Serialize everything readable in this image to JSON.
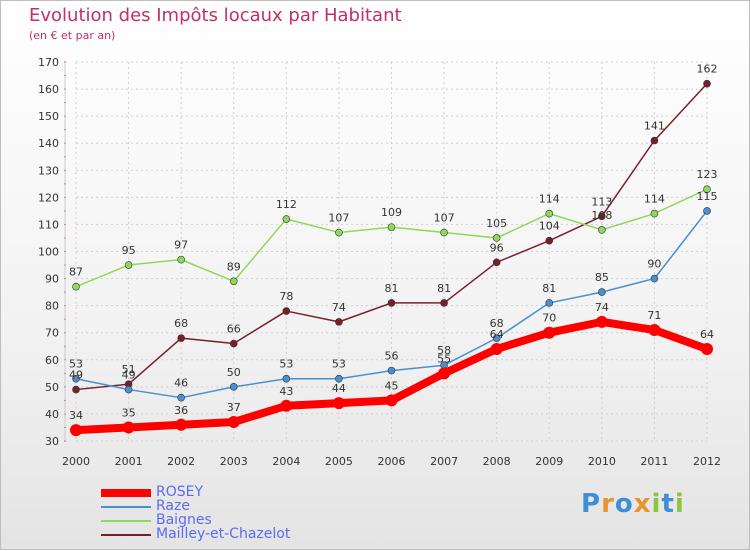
{
  "header": {
    "title": "Evolution des Impôts locaux par Habitant",
    "subtitle": "(en € et par an)"
  },
  "logo": {
    "text": "Proxiti",
    "letters": [
      "P",
      "r",
      "o",
      "x",
      "i",
      "t",
      "i"
    ],
    "colors": [
      "#3f8fd6",
      "#e8942e",
      "#3f8fd6",
      "#e8942e",
      "#8cc63f",
      "#3f8fd6",
      "#8cc63f"
    ]
  },
  "chart_data": {
    "type": "line",
    "title": "Evolution des Impôts locaux par Habitant",
    "subtitle": "(en € et par an)",
    "xlabel": "",
    "ylabel": "",
    "categories": [
      "2000",
      "2001",
      "2002",
      "2003",
      "2004",
      "2005",
      "2006",
      "2007",
      "2008",
      "2009",
      "2010",
      "2011",
      "2012"
    ],
    "ylim": [
      30,
      170
    ],
    "yticks": [
      30,
      40,
      50,
      60,
      70,
      80,
      90,
      100,
      110,
      120,
      130,
      140,
      150,
      160,
      170
    ],
    "grid": true,
    "legend_position": "bottom-left",
    "series": [
      {
        "name": "ROSEY",
        "color": "#ff0000",
        "values": [
          34,
          35,
          36,
          37,
          43,
          44,
          45,
          55,
          64,
          70,
          74,
          71,
          64
        ],
        "labels": [
          "34",
          "35",
          "36",
          "37",
          "43",
          "44",
          "45",
          "55",
          "64",
          "70",
          "74",
          "71",
          "64"
        ]
      },
      {
        "name": "Raze",
        "color": "#4a8fd0",
        "values": [
          53,
          49,
          46,
          50,
          53,
          53,
          56,
          58,
          68,
          81,
          85,
          90,
          115
        ],
        "labels": [
          "53",
          "49",
          "46",
          "50",
          "53",
          "53",
          "56",
          "58",
          "68",
          "81",
          "85",
          "90",
          "115"
        ]
      },
      {
        "name": "Baignes",
        "color": "#8fd85a",
        "values": [
          87,
          95,
          97,
          89,
          112,
          107,
          109,
          107,
          105,
          114,
          108,
          114,
          123
        ],
        "labels": [
          "87",
          "95",
          "97",
          "89",
          "112",
          "107",
          "109",
          "107",
          "105",
          "114",
          "108",
          "114",
          "123"
        ]
      },
      {
        "name": "Mailley-et-Chazelot",
        "color": "#7a1f2a",
        "values": [
          49,
          51,
          68,
          66,
          78,
          74,
          81,
          81,
          96,
          104,
          113,
          141,
          162
        ],
        "labels": [
          "49",
          "51",
          "68",
          "66",
          "78",
          "74",
          "81",
          "81",
          "96",
          "104",
          "113",
          "141",
          "162"
        ]
      }
    ]
  }
}
